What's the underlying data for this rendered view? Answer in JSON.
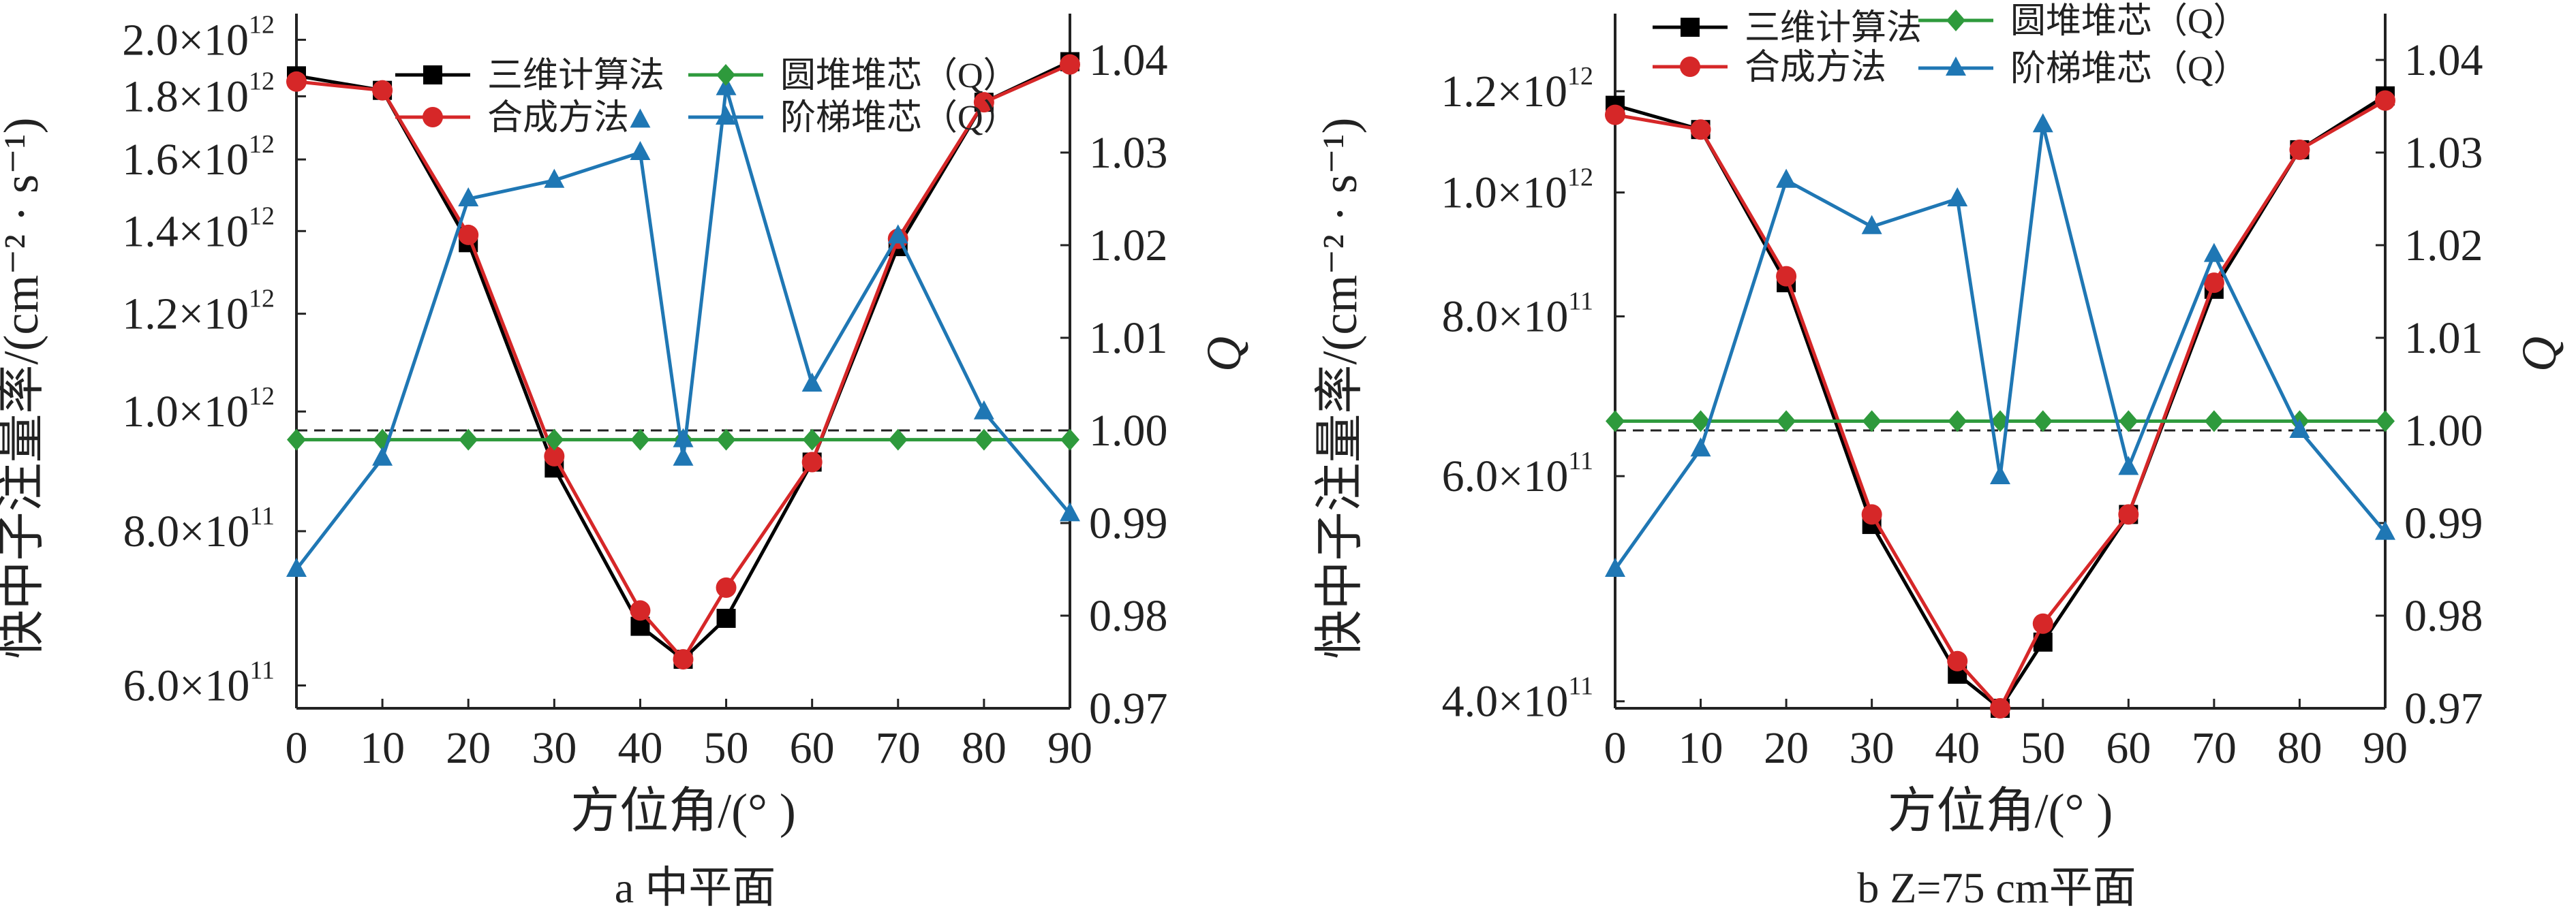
{
  "chart_data": [
    {
      "type": "line",
      "caption": "a  中平面",
      "x_axis": {
        "label": "方位角/(°  )",
        "range": [
          0,
          90
        ],
        "ticks": [
          0,
          10,
          20,
          30,
          40,
          50,
          60,
          70,
          80,
          90
        ]
      },
      "y_left": {
        "label": "快中子注量率/(cm⁻² · s⁻¹)",
        "scale": "log",
        "range": [
          575000000000.0,
          2100000000000.0
        ],
        "ticks": [
          {
            "value": 600000000000.0,
            "mantissa": "6.0×10",
            "exp": "11"
          },
          {
            "value": 800000000000.0,
            "mantissa": "8.0×10",
            "exp": "11"
          },
          {
            "value": 1000000000000.0,
            "mantissa": "1.0×10",
            "exp": "12"
          },
          {
            "value": 1200000000000.0,
            "mantissa": "1.2×10",
            "exp": "12"
          },
          {
            "value": 1400000000000.0,
            "mantissa": "1.4×10",
            "exp": "12"
          },
          {
            "value": 1600000000000.0,
            "mantissa": "1.6×10",
            "exp": "12"
          },
          {
            "value": 1800000000000.0,
            "mantissa": "1.8×10",
            "exp": "12"
          },
          {
            "value": 2000000000000.0,
            "mantissa": "2.0×10",
            "exp": "12"
          }
        ]
      },
      "y_right": {
        "label": "Q",
        "range": [
          0.97,
          1.045
        ],
        "ticks": [
          "0.97",
          "0.98",
          "0.99",
          "1.00",
          "1.01",
          "1.02",
          "1.03",
          "1.04"
        ],
        "reference_line": 1.0
      },
      "x": [
        0,
        10,
        20,
        30,
        40,
        45,
        50,
        60,
        70,
        80,
        90
      ],
      "series": [
        {
          "name": "三维计算法",
          "axis": "left",
          "color": "#000000",
          "marker": "square",
          "values": [
            1870000000000.0,
            1820000000000.0,
            1370000000000.0,
            900000000000.0,
            670000000000.0,
            630000000000.0,
            680000000000.0,
            910000000000.0,
            1360000000000.0,
            1780000000000.0,
            1920000000000.0
          ]
        },
        {
          "name": "合成方法",
          "axis": "left",
          "color": "#d62728",
          "marker": "circle",
          "values": [
            1850000000000.0,
            1820000000000.0,
            1390000000000.0,
            920000000000.0,
            690000000000.0,
            630000000000.0,
            720000000000.0,
            910000000000.0,
            1380000000000.0,
            1780000000000.0,
            1910000000000.0
          ]
        },
        {
          "name": "圆堆堆芯（Q）",
          "axis": "right",
          "color": "#2e9a3c",
          "marker": "diamond",
          "values": [
            0.999,
            0.999,
            0.999,
            0.999,
            0.999,
            0.999,
            0.999,
            0.999,
            0.999,
            0.999,
            0.999
          ]
        },
        {
          "name": "阶梯堆芯（Q）",
          "axis": "right",
          "color": "#1f77b4",
          "marker": "triangle",
          "values": [
            0.985,
            0.997,
            1.025,
            1.027,
            1.03,
            0.997,
            1.037,
            1.005,
            1.021,
            1.002,
            0.991
          ],
          "extra_points": [
            {
              "x": 40,
              "y": 1.0335
            },
            {
              "x": 45,
              "y": 0.999
            }
          ]
        }
      ],
      "legend": {
        "placement": "top",
        "order": [
          "三维计算法",
          "圆堆堆芯（Q）",
          "合成方法",
          "阶梯堆芯（Q）"
        ]
      }
    },
    {
      "type": "line",
      "caption": "b  Z=75 cm平面",
      "x_axis": {
        "label": "方位角/(°  )",
        "range": [
          0,
          90
        ],
        "ticks": [
          0,
          10,
          20,
          30,
          40,
          50,
          60,
          70,
          80,
          90
        ]
      },
      "y_left": {
        "label": "快中子注量率/(cm⁻² · s⁻¹)",
        "scale": "log",
        "range": [
          395000000000.0,
          1380000000000.0
        ],
        "ticks": [
          {
            "value": 400000000000.0,
            "mantissa": "4.0×10",
            "exp": "11"
          },
          {
            "value": 600000000000.0,
            "mantissa": "6.0×10",
            "exp": "11"
          },
          {
            "value": 800000000000.0,
            "mantissa": "8.0×10",
            "exp": "11"
          },
          {
            "value": 1000000000000.0,
            "mantissa": "1.0×10",
            "exp": "12"
          },
          {
            "value": 1200000000000.0,
            "mantissa": "1.2×10",
            "exp": "12"
          }
        ]
      },
      "y_right": {
        "label": "Q",
        "range": [
          0.97,
          1.045
        ],
        "ticks": [
          "0.97",
          "0.98",
          "0.99",
          "1.00",
          "1.01",
          "1.02",
          "1.03",
          "1.04"
        ],
        "reference_line": 1.0
      },
      "x": [
        0,
        10,
        20,
        30,
        40,
        45,
        50,
        60,
        70,
        80,
        90
      ],
      "series": [
        {
          "name": "三维计算法",
          "axis": "left",
          "color": "#000000",
          "marker": "square",
          "values": [
            1170000000000.0,
            1120000000000.0,
            850000000000.0,
            550000000000.0,
            420000000000.0,
            395000000000.0,
            445000000000.0,
            560000000000.0,
            840000000000.0,
            1080000000000.0,
            1190000000000.0
          ]
        },
        {
          "name": "合成方法",
          "axis": "left",
          "color": "#d62728",
          "marker": "circle",
          "values": [
            1150000000000.0,
            1120000000000.0,
            860000000000.0,
            560000000000.0,
            430000000000.0,
            395000000000.0,
            460000000000.0,
            560000000000.0,
            850000000000.0,
            1080000000000.0,
            1180000000000.0
          ]
        },
        {
          "name": "圆堆堆芯（Q）",
          "axis": "right",
          "color": "#2e9a3c",
          "marker": "diamond",
          "values": [
            1.001,
            1.001,
            1.001,
            1.001,
            1.001,
            1.001,
            1.001,
            1.001,
            1.001,
            1.001,
            1.001
          ]
        },
        {
          "name": "阶梯堆芯（Q）",
          "axis": "right",
          "color": "#1f77b4",
          "marker": "triangle",
          "values": [
            0.985,
            0.998,
            1.027,
            1.022,
            1.025,
            0.995,
            1.033,
            0.996,
            1.019,
            1.0,
            0.989
          ]
        }
      ],
      "legend": {
        "placement": "top",
        "order": [
          "三维计算法",
          "圆堆堆芯（Q）",
          "合成方法",
          "阶梯堆芯（Q）"
        ]
      }
    }
  ]
}
